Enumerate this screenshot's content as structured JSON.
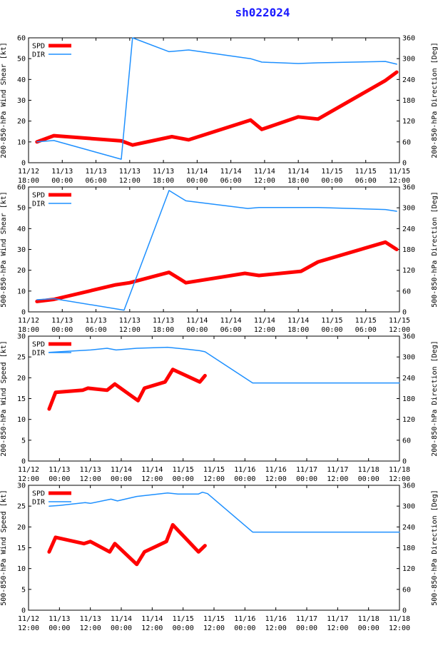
{
  "title": "sh022024",
  "colors": {
    "spd": "#ff0000",
    "dir": "#1e90ff",
    "axis": "#000000",
    "title": "#1a1aff"
  },
  "chart_data": [
    {
      "type": "line",
      "ylabel_left": "200-850-hPa Wind Shear [kt]",
      "ylabel_right": "200-850-hPa Direction [Deg]",
      "left_ylim": [
        0,
        60
      ],
      "left_ticks": [
        0,
        10,
        20,
        30,
        40,
        50,
        60
      ],
      "right_ylim": [
        0,
        360
      ],
      "right_ticks": [
        0,
        60,
        120,
        180,
        240,
        300,
        360
      ],
      "xlim": [
        0,
        66
      ],
      "x_ticks": [
        {
          "x": 0,
          "l1": "11/12",
          "l2": "18:00"
        },
        {
          "x": 6,
          "l1": "11/13",
          "l2": "00:00"
        },
        {
          "x": 12,
          "l1": "11/13",
          "l2": "06:00"
        },
        {
          "x": 18,
          "l1": "11/13",
          "l2": "12:00"
        },
        {
          "x": 24,
          "l1": "11/13",
          "l2": "18:00"
        },
        {
          "x": 30,
          "l1": "11/14",
          "l2": "00:00"
        },
        {
          "x": 36,
          "l1": "11/14",
          "l2": "06:00"
        },
        {
          "x": 42,
          "l1": "11/14",
          "l2": "12:00"
        },
        {
          "x": 48,
          "l1": "11/14",
          "l2": "18:00"
        },
        {
          "x": 54,
          "l1": "11/15",
          "l2": "00:00"
        },
        {
          "x": 60,
          "l1": "11/15",
          "l2": "06:00"
        },
        {
          "x": 66,
          "l1": "11/15",
          "l2": "12:00"
        }
      ],
      "legend": [
        "SPD",
        "DIR"
      ],
      "series": [
        {
          "name": "SPD",
          "axis": "left",
          "x": [
            1.5,
            4.5,
            16.5,
            18.5,
            25.5,
            28.5,
            39.5,
            41.5,
            48,
            51.5,
            63.5,
            65.5
          ],
          "y": [
            10,
            13,
            10.5,
            8.5,
            12.5,
            11,
            20.5,
            16,
            22,
            21,
            39.5,
            43.5
          ]
        },
        {
          "name": "DIR",
          "axis": "right",
          "x": [
            1.5,
            4.5,
            16.5,
            18.5,
            25,
            28.5,
            39.5,
            41.5,
            48,
            51.5,
            63.5,
            65.5
          ],
          "y": [
            60,
            64,
            10,
            360,
            320,
            325,
            300,
            290,
            286,
            288,
            292,
            284
          ]
        }
      ]
    },
    {
      "type": "line",
      "ylabel_left": "500-850-hPa Wind Shear [kt]",
      "ylabel_right": "500-850-hPa Direction [Deg]",
      "left_ylim": [
        0,
        60
      ],
      "left_ticks": [
        0,
        10,
        20,
        30,
        40,
        50,
        60
      ],
      "right_ylim": [
        0,
        360
      ],
      "right_ticks": [
        0,
        60,
        120,
        180,
        240,
        300,
        360
      ],
      "xlim": [
        0,
        66
      ],
      "x_ticks": [
        {
          "x": 0,
          "l1": "11/12",
          "l2": "18:00"
        },
        {
          "x": 6,
          "l1": "11/13",
          "l2": "00:00"
        },
        {
          "x": 12,
          "l1": "11/13",
          "l2": "06:00"
        },
        {
          "x": 18,
          "l1": "11/13",
          "l2": "12:00"
        },
        {
          "x": 24,
          "l1": "11/13",
          "l2": "18:00"
        },
        {
          "x": 30,
          "l1": "11/14",
          "l2": "00:00"
        },
        {
          "x": 36,
          "l1": "11/14",
          "l2": "06:00"
        },
        {
          "x": 42,
          "l1": "11/14",
          "l2": "12:00"
        },
        {
          "x": 48,
          "l1": "11/14",
          "l2": "18:00"
        },
        {
          "x": 54,
          "l1": "11/15",
          "l2": "00:00"
        },
        {
          "x": 60,
          "l1": "11/15",
          "l2": "06:00"
        },
        {
          "x": 66,
          "l1": "11/15",
          "l2": "12:00"
        }
      ],
      "legend": [
        "SPD",
        "DIR"
      ],
      "series": [
        {
          "name": "SPD",
          "axis": "left",
          "x": [
            1.5,
            4.5,
            15.5,
            18,
            25,
            28,
            38.5,
            41,
            48.5,
            51.5,
            63.5,
            65.5
          ],
          "y": [
            5,
            6,
            13,
            14,
            19,
            14,
            18.5,
            17.5,
            19.5,
            24,
            33.5,
            30
          ]
        },
        {
          "name": "DIR",
          "axis": "right",
          "x": [
            1.5,
            4.5,
            17,
            25,
            28,
            39,
            41,
            51.5,
            63.5,
            65.5
          ],
          "y": [
            35,
            38,
            5,
            350,
            320,
            298,
            301,
            301,
            295,
            290
          ]
        }
      ]
    },
    {
      "type": "line",
      "ylabel_left": "200-850-hPa Wind Speed [kt]",
      "ylabel_right": "200-850-hPa Direction [Deg]",
      "left_ylim": [
        0,
        30
      ],
      "left_ticks": [
        0,
        5,
        10,
        15,
        20,
        25,
        30
      ],
      "right_ylim": [
        0,
        360
      ],
      "right_ticks": [
        0,
        60,
        120,
        180,
        240,
        300,
        360
      ],
      "xlim": [
        0,
        144
      ],
      "x_ticks": [
        {
          "x": 0,
          "l1": "11/12",
          "l2": "12:00"
        },
        {
          "x": 12,
          "l1": "11/13",
          "l2": "00:00"
        },
        {
          "x": 24,
          "l1": "11/13",
          "l2": "12:00"
        },
        {
          "x": 36,
          "l1": "11/14",
          "l2": "00:00"
        },
        {
          "x": 48,
          "l1": "11/14",
          "l2": "12:00"
        },
        {
          "x": 60,
          "l1": "11/15",
          "l2": "00:00"
        },
        {
          "x": 72,
          "l1": "11/15",
          "l2": "12:00"
        },
        {
          "x": 84,
          "l1": "11/16",
          "l2": "00:00"
        },
        {
          "x": 96,
          "l1": "11/16",
          "l2": "12:00"
        },
        {
          "x": 108,
          "l1": "11/17",
          "l2": "00:00"
        },
        {
          "x": 120,
          "l1": "11/17",
          "l2": "12:00"
        },
        {
          "x": 132,
          "l1": "11/18",
          "l2": "00:00"
        },
        {
          "x": 144,
          "l1": "11/18",
          "l2": "12:00"
        }
      ],
      "legend": [
        "SPD",
        "DIR"
      ],
      "series": [
        {
          "name": "SPD",
          "axis": "left",
          "x": [
            8,
            10.5,
            21,
            23,
            30.5,
            33.5,
            42.5,
            45,
            53,
            56,
            66.5,
            68.5
          ],
          "y": [
            12.5,
            16.5,
            17,
            17.5,
            17,
            18.5,
            14.5,
            17.5,
            19,
            22,
            19,
            20.5
          ]
        },
        {
          "name": "DIR",
          "axis": "right",
          "x": [
            8,
            12,
            24,
            30.5,
            34,
            42,
            54,
            62,
            66.5,
            68.5,
            87,
            144
          ],
          "y": [
            313,
            315,
            320,
            325,
            320,
            325,
            328,
            322,
            318,
            315,
            225,
            225
          ]
        }
      ]
    },
    {
      "type": "line",
      "ylabel_left": "500-850-hPa Wind Speed [kt]",
      "ylabel_right": "500-850-hPa Direction [Deg]",
      "left_ylim": [
        0,
        30
      ],
      "left_ticks": [
        0,
        5,
        10,
        15,
        20,
        25,
        30
      ],
      "right_ylim": [
        0,
        360
      ],
      "right_ticks": [
        0,
        60,
        120,
        180,
        240,
        300,
        360
      ],
      "xlim": [
        0,
        144
      ],
      "x_ticks": [
        {
          "x": 0,
          "l1": "11/12",
          "l2": "12:00"
        },
        {
          "x": 12,
          "l1": "11/13",
          "l2": "00:00"
        },
        {
          "x": 24,
          "l1": "11/13",
          "l2": "12:00"
        },
        {
          "x": 36,
          "l1": "11/14",
          "l2": "00:00"
        },
        {
          "x": 48,
          "l1": "11/14",
          "l2": "12:00"
        },
        {
          "x": 60,
          "l1": "11/15",
          "l2": "00:00"
        },
        {
          "x": 72,
          "l1": "11/15",
          "l2": "12:00"
        },
        {
          "x": 84,
          "l1": "11/16",
          "l2": "00:00"
        },
        {
          "x": 96,
          "l1": "11/16",
          "l2": "12:00"
        },
        {
          "x": 108,
          "l1": "11/17",
          "l2": "00:00"
        },
        {
          "x": 120,
          "l1": "11/17",
          "l2": "12:00"
        },
        {
          "x": 132,
          "l1": "11/18",
          "l2": "00:00"
        },
        {
          "x": 144,
          "l1": "11/18",
          "l2": "12:00"
        }
      ],
      "legend": [
        "SPD",
        "DIR"
      ],
      "series": [
        {
          "name": "SPD",
          "axis": "left",
          "x": [
            8,
            10.5,
            21.5,
            24,
            31.5,
            33.5,
            42,
            45,
            53.5,
            56,
            66,
            68.5
          ],
          "y": [
            14,
            17.5,
            16,
            16.5,
            14,
            16,
            11,
            14,
            16.5,
            20.5,
            14,
            15.5
          ]
        },
        {
          "name": "DIR",
          "axis": "right",
          "x": [
            8,
            12,
            22,
            24,
            32,
            34.5,
            42,
            54,
            58,
            66,
            67.5,
            69.5,
            87,
            144
          ],
          "y": [
            300,
            302,
            310,
            308,
            320,
            315,
            328,
            338,
            335,
            335,
            340,
            336,
            225,
            225
          ]
        }
      ]
    }
  ]
}
